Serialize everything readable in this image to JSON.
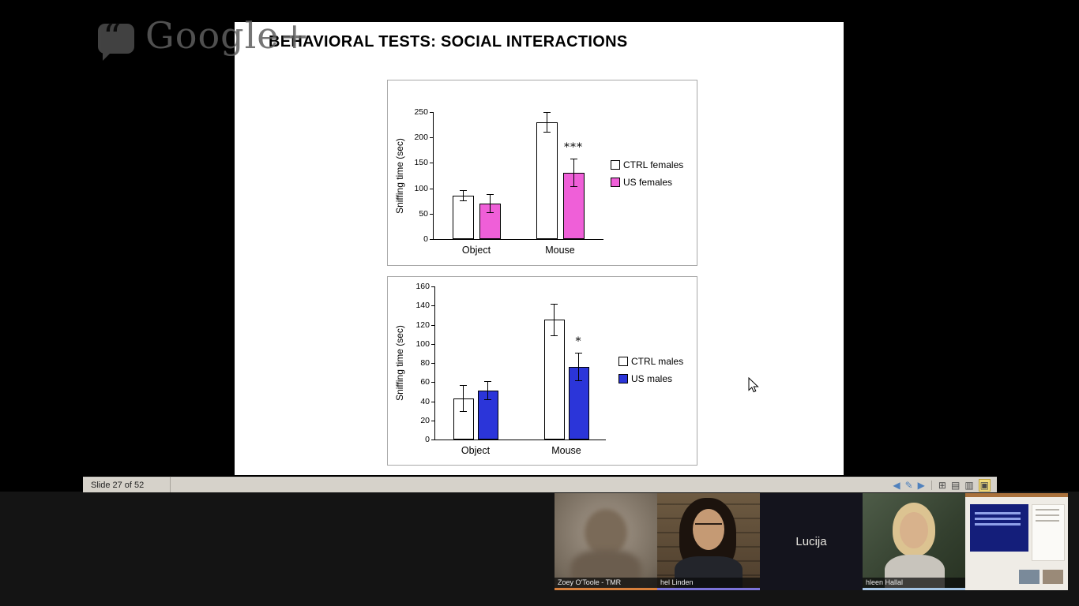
{
  "watermark": {
    "text": "Google+",
    "quote_glyph": "“"
  },
  "slide": {
    "title": "BEHAVIORAL TESTS: SOCIAL INTERACTIONS"
  },
  "chart_data": [
    {
      "type": "bar",
      "title": "",
      "ylabel": "Sniffing time (sec)",
      "categories": [
        "Object",
        "Mouse"
      ],
      "ylim": [
        0,
        250
      ],
      "ytick_step": 50,
      "grid": false,
      "legend_position": "right",
      "series": [
        {
          "name": "CTRL females",
          "color": "#ffffff",
          "values": [
            85,
            230
          ],
          "errors": [
            11,
            20
          ]
        },
        {
          "name": "US females",
          "color": "#ef5fd8",
          "values": [
            70,
            130
          ],
          "errors": [
            18,
            28
          ]
        }
      ],
      "annotations": [
        {
          "text": "***",
          "series": 1,
          "category": 1
        }
      ]
    },
    {
      "type": "bar",
      "title": "",
      "ylabel": "Sniffing time (sec)",
      "categories": [
        "Object",
        "Mouse"
      ],
      "ylim": [
        0,
        160
      ],
      "ytick_step": 20,
      "grid": false,
      "legend_position": "right",
      "series": [
        {
          "name": "CTRL males",
          "color": "#ffffff",
          "values": [
            43,
            125
          ],
          "errors": [
            14,
            17
          ]
        },
        {
          "name": "US males",
          "color": "#2b35d9",
          "values": [
            51,
            76
          ],
          "errors": [
            10,
            15
          ]
        }
      ],
      "annotations": [
        {
          "text": "*",
          "series": 1,
          "category": 1
        }
      ]
    }
  ],
  "statusbar": {
    "slide_indicator": "Slide 27 of 52",
    "icons": [
      {
        "name": "prev-slide",
        "glyph": "◀"
      },
      {
        "name": "jump-to-slide",
        "glyph": "✎"
      },
      {
        "name": "next-slide",
        "glyph": "▶"
      },
      {
        "name": "view-normal",
        "glyph": "⊞"
      },
      {
        "name": "view-outline",
        "glyph": "▤"
      },
      {
        "name": "view-notes",
        "glyph": "▥"
      },
      {
        "name": "view-slideshow",
        "glyph": "▣"
      }
    ]
  },
  "filmstrip": {
    "participants": [
      {
        "name": "Zoey O'Toole - TMR",
        "accent": "#d8803c"
      },
      {
        "name": "hel Linden",
        "accent": "#7c74d8"
      },
      {
        "name": "Lucija",
        "accent": ""
      },
      {
        "name": "hleen Hallal",
        "accent": "#a6c6e6"
      }
    ]
  }
}
